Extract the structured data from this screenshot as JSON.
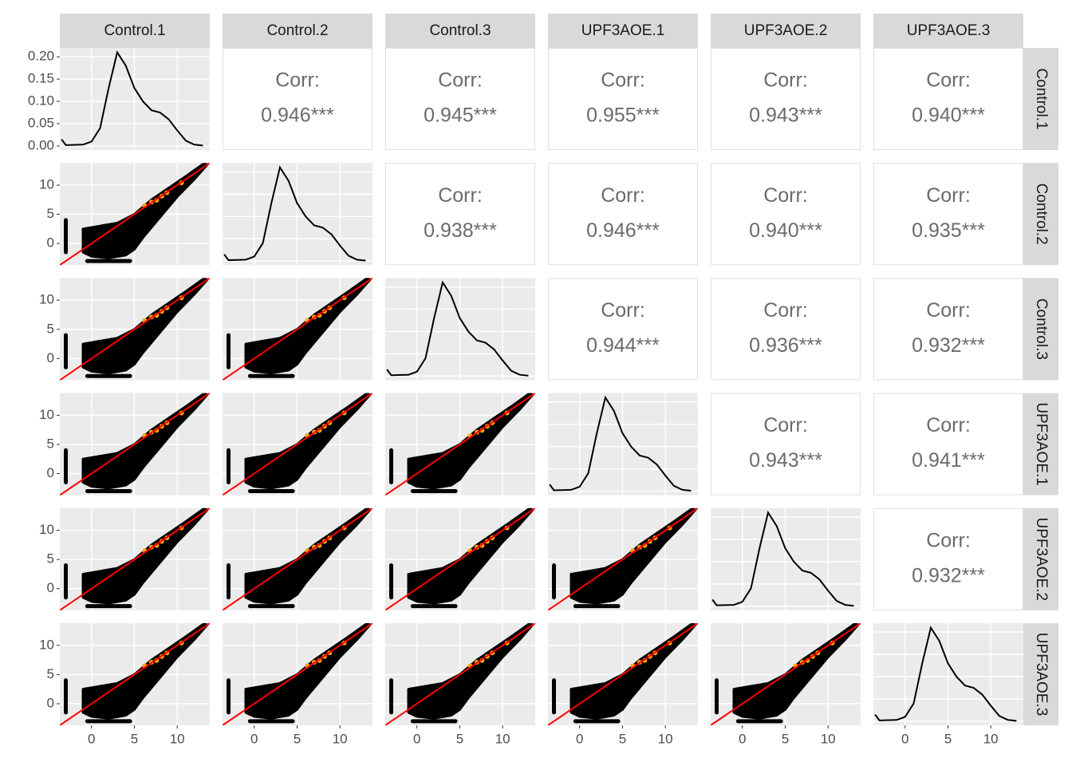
{
  "chart_data": {
    "type": "pairs",
    "variables": [
      "Control.1",
      "Control.2",
      "Control.3",
      "UPF3AOE.1",
      "UPF3AOE.2",
      "UPF3AOE.3"
    ],
    "corr_label": "Corr:",
    "correlations": [
      [
        "0.946***",
        "0.945***",
        "0.955***",
        "0.943***",
        "0.940***"
      ],
      [
        "0.938***",
        "0.946***",
        "0.940***",
        "0.935***"
      ],
      [
        "0.944***",
        "0.936***",
        "0.932***"
      ],
      [
        "0.943***",
        "0.941***"
      ],
      [
        "0.932***"
      ],
      []
    ],
    "xlim": [
      -3.7,
      13.8
    ],
    "xticks": [
      0,
      5,
      10
    ],
    "ylim": [
      -3.7,
      13.8
    ],
    "yticks": [
      0,
      5,
      10
    ],
    "density_ylim": [
      -0.009,
      0.22
    ],
    "density_yticks": [
      {
        "value": 0,
        "label": "0.00"
      },
      {
        "value": 0.05,
        "label": "0.05"
      },
      {
        "value": 0.1,
        "label": "0.10"
      },
      {
        "value": 0.15,
        "label": "0.15"
      },
      {
        "value": 0.2,
        "label": "0.20"
      }
    ],
    "density": {
      "x": [
        -3.5,
        -3,
        -1,
        0,
        1,
        2,
        3,
        4,
        5,
        6,
        7,
        8,
        9,
        10,
        11,
        12,
        13
      ],
      "y": [
        0.015,
        0.002,
        0.003,
        0.01,
        0.04,
        0.13,
        0.21,
        0.18,
        0.13,
        0.1,
        0.08,
        0.075,
        0.06,
        0.035,
        0.012,
        0.003,
        0.001
      ]
    },
    "cloud": {
      "x": [
        -1,
        0,
        2,
        4,
        5,
        6,
        8,
        10,
        12,
        13.5,
        13.2,
        11,
        9,
        7,
        5,
        3,
        1,
        -1
      ],
      "y": [
        -1.5,
        -2.2,
        -2.5,
        -2,
        -1,
        1,
        4.5,
        8,
        11,
        13.5,
        13.8,
        11.5,
        9.5,
        7.5,
        5,
        3.5,
        3,
        2.5
      ]
    },
    "cloud_color": "#000000",
    "left_dropouts": {
      "x": [
        -3,
        -3
      ],
      "y": [
        -1.5,
        4
      ]
    },
    "bottom_dropouts": {
      "x": [
        -0.5,
        4.5
      ],
      "y": [
        -3,
        -3
      ]
    },
    "highlight": {
      "color": "#ffa500",
      "x": [
        6.2,
        7,
        7.6,
        8.2,
        8.8,
        10.5
      ],
      "y": [
        6.5,
        7.1,
        7.4,
        8.1,
        8.7,
        10.4
      ]
    },
    "fit_line": {
      "color": "#ff0000",
      "x": [
        -3.7,
        13.8
      ],
      "y": [
        -3.7,
        13.8
      ]
    }
  }
}
